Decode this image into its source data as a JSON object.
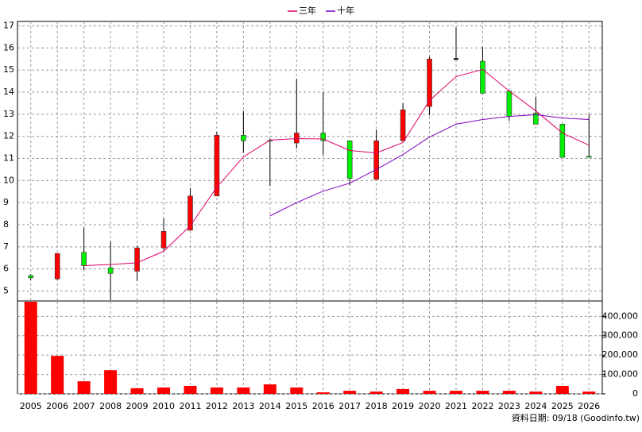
{
  "chart_data": [
    {
      "type": "candlestick",
      "up_color": "#ff0000",
      "down_color": "#00ee00",
      "open": [
        5.7,
        5.55,
        6.75,
        6.05,
        5.9,
        6.95,
        7.75,
        9.3,
        12.05,
        11.82,
        11.7,
        12.15,
        11.8,
        10.05,
        11.8,
        13.35,
        15.5,
        15.4,
        14.05,
        13.05,
        12.55,
        11.1
      ],
      "high": [
        5.75,
        6.7,
        7.87,
        7.25,
        7.05,
        8.3,
        9.65,
        12.2,
        13.15,
        11.9,
        14.6,
        14.0,
        11.8,
        12.3,
        13.5,
        15.6,
        16.93,
        16.05,
        14.05,
        13.8,
        12.55,
        13.0
      ],
      "low": [
        5.5,
        5.5,
        5.95,
        4.6,
        5.45,
        6.85,
        7.75,
        9.3,
        11.25,
        9.75,
        11.45,
        11.15,
        9.8,
        10.05,
        11.8,
        12.95,
        15.5,
        13.95,
        12.7,
        12.55,
        11.05,
        11.05
      ],
      "close": [
        5.6,
        6.7,
        6.15,
        5.8,
        6.95,
        7.7,
        9.3,
        12.05,
        11.8,
        11.8,
        12.15,
        11.8,
        10.1,
        11.8,
        13.2,
        15.5,
        15.5,
        13.95,
        12.9,
        12.55,
        11.05,
        11.05
      ],
      "series": [
        {
          "name": "三年",
          "color": "#e0006a",
          "values": [
            null,
            null,
            6.15,
            6.2,
            6.28,
            6.8,
            7.95,
            9.7,
            11.07,
            11.83,
            11.9,
            11.88,
            11.36,
            11.25,
            11.72,
            13.62,
            14.7,
            15.03,
            14.05,
            13.15,
            12.15,
            11.6
          ]
        },
        {
          "name": "十年",
          "color": "#8000c0",
          "values": [
            null,
            null,
            null,
            null,
            null,
            null,
            null,
            null,
            null,
            8.4,
            9.0,
            9.52,
            9.88,
            10.5,
            11.18,
            11.97,
            12.55,
            12.76,
            12.9,
            12.98,
            12.83,
            12.76
          ]
        }
      ],
      "ylim": [
        4.55,
        17.2
      ],
      "yticks": [
        5,
        6,
        7,
        8,
        9,
        10,
        11,
        12,
        13,
        14,
        15,
        16,
        17
      ],
      "grid": true
    },
    {
      "type": "bar",
      "color": "#ff0000",
      "categories": [
        "2005",
        "2006",
        "2007",
        "2008",
        "2009",
        "2010",
        "2011",
        "2012",
        "2013",
        "2014",
        "2015",
        "2016",
        "2017",
        "2018",
        "2019",
        "2020",
        "2021",
        "2022",
        "2023",
        "2024",
        "2025",
        "2026"
      ],
      "values": [
        475000,
        196000,
        65000,
        122000,
        29000,
        33000,
        41000,
        33000,
        33000,
        49000,
        33000,
        8000,
        16000,
        12000,
        25000,
        16000,
        16000,
        16000,
        16000,
        12000,
        41000,
        12000
      ],
      "ylim": [
        0,
        475000
      ],
      "yticks": [
        0,
        {
          "value": 100000,
          "label": "100,000"
        },
        {
          "value": 200000,
          "label": "200,000"
        },
        {
          "value": 300000,
          "label": "300,000"
        },
        {
          "value": 400000,
          "label": "400,000"
        }
      ],
      "grid": true,
      "footer": "資料日期: 09/18 (Goodinfo.tw)"
    }
  ]
}
